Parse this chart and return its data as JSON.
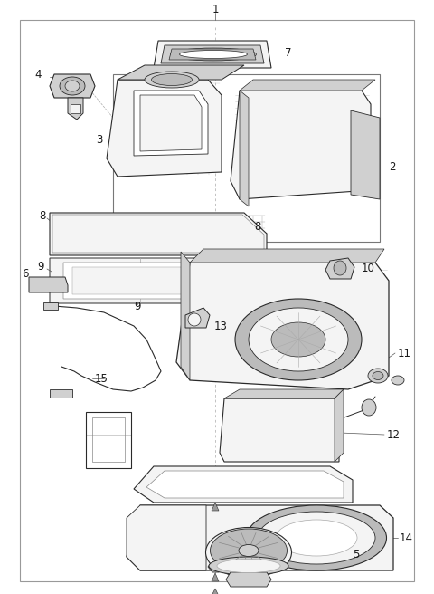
{
  "bg": "#ffffff",
  "lc": "#2a2a2a",
  "lc2": "#444444",
  "gray1": "#e8e8e8",
  "gray2": "#d0d0d0",
  "gray3": "#bbbbbb",
  "gray4": "#f4f4f4",
  "border": "#888888",
  "fig_w": 4.8,
  "fig_h": 6.56,
  "dpi": 100,
  "label_color": "#1a1a1a",
  "leader_color": "#555555"
}
